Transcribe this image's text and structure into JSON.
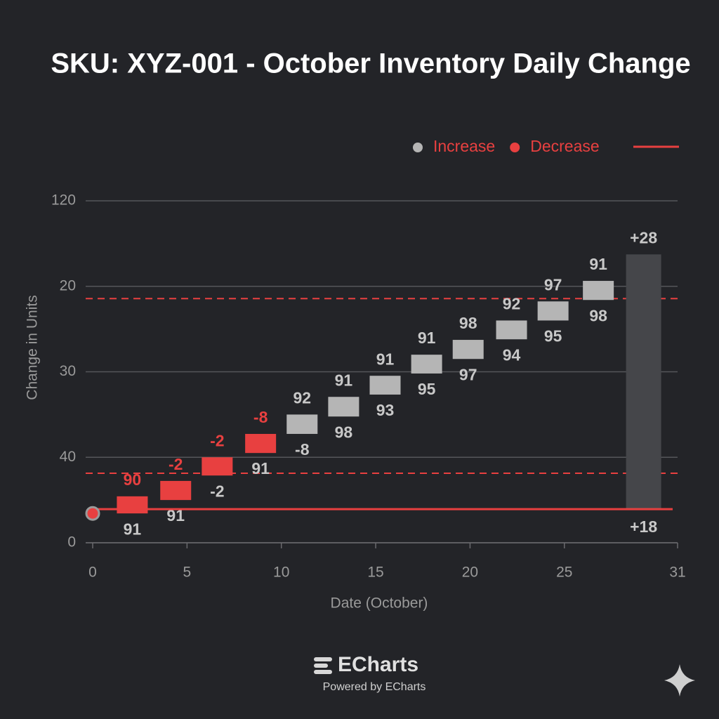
{
  "chart_data": {
    "type": "waterfall",
    "title": "SKU: XYZ-001 - October Inventory Daily Change",
    "x_label": "Date (October)",
    "y_label": "Change in Units",
    "xlim": [
      0,
      31
    ],
    "xticks": [
      0,
      5,
      10,
      15,
      20,
      25,
      31
    ],
    "ylim": [
      0,
      120
    ],
    "yticks": [
      0,
      {
        "value": 30,
        "label": "40"
      },
      {
        "value": 60,
        "label": "30"
      },
      {
        "value": 90,
        "label": "20"
      },
      120
    ],
    "grid": true,
    "legend": {
      "position": "top-right",
      "items": [
        {
          "name": "Increase",
          "color": "#b5b5b5"
        },
        {
          "name": "Decrease",
          "color": "#e84040"
        }
      ],
      "line_color": "#e84040"
    },
    "colors": {
      "increase": "#b5b5b5",
      "decrease": "#e84040",
      "total": "#45464a"
    },
    "bars": [
      {
        "x": 2.1,
        "kind": "decrease",
        "start": 16.3,
        "end": 10.3,
        "top_label": "90",
        "bottom_label": "91"
      },
      {
        "x": 4.4,
        "kind": "decrease",
        "start": 21.7,
        "end": 15,
        "top_label": "-2",
        "bottom_label": "91"
      },
      {
        "x": 6.6,
        "kind": "decrease",
        "start": 30,
        "end": 23.6,
        "top_label": "-2",
        "bottom_label": "-2"
      },
      {
        "x": 8.9,
        "kind": "decrease",
        "start": 38.2,
        "end": 31.5,
        "top_label": "-8",
        "bottom_label": "91"
      },
      {
        "x": 11.1,
        "kind": "increase",
        "start": 38.2,
        "end": 45,
        "top_label": "92",
        "bottom_label": "-8"
      },
      {
        "x": 13.3,
        "kind": "increase",
        "start": 44.3,
        "end": 51.2,
        "top_label": "91",
        "bottom_label": "98"
      },
      {
        "x": 15.5,
        "kind": "increase",
        "start": 52,
        "end": 58.6,
        "top_label": "91",
        "bottom_label": "93"
      },
      {
        "x": 17.7,
        "kind": "increase",
        "start": 59.4,
        "end": 66,
        "top_label": "91",
        "bottom_label": "95"
      },
      {
        "x": 19.9,
        "kind": "increase",
        "start": 64.5,
        "end": 71.2,
        "top_label": "98",
        "bottom_label": "97"
      },
      {
        "x": 22.2,
        "kind": "increase",
        "start": 71.4,
        "end": 78,
        "top_label": "92",
        "bottom_label": "94"
      },
      {
        "x": 24.4,
        "kind": "increase",
        "start": 78,
        "end": 84.7,
        "top_label": "97",
        "bottom_label": "95"
      },
      {
        "x": 26.8,
        "kind": "increase",
        "start": 85.2,
        "end": 91.9,
        "top_label": "91",
        "bottom_label": "98"
      },
      {
        "x": 29.2,
        "kind": "total",
        "start": 11.8,
        "end": 101.2,
        "top_label": "+28",
        "bottom_label": "+18"
      }
    ],
    "start_point": {
      "x": 0,
      "value": 10.3
    },
    "baseline": 11.8,
    "dashed_lines": [
      85.7,
      24.4
    ],
    "footer": {
      "logo": "ECharts",
      "text": "Powered by ECharts"
    }
  }
}
